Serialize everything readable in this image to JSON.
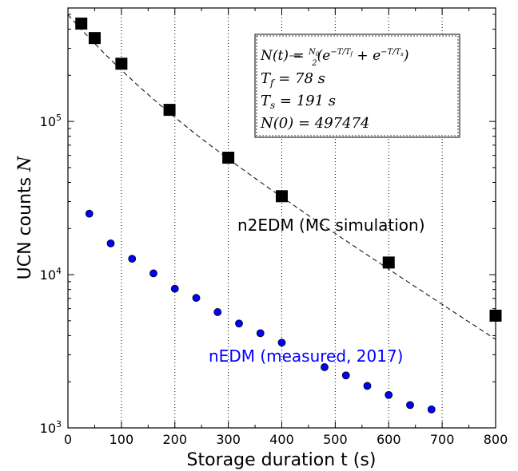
{
  "chart_data": {
    "type": "scatter",
    "xlabel": "Storage duration t (s)",
    "ylabel": "UCN counts",
    "ylabel_symbol": "N",
    "xlim": [
      0,
      800
    ],
    "ylim": [
      1000,
      550000
    ],
    "yscale": "log",
    "x_grid": "dotted vertical lines at major x ticks",
    "x_ticks": [
      0,
      100,
      200,
      300,
      400,
      500,
      600,
      700,
      800
    ],
    "x_tick_labels": [
      "0",
      "100",
      "200",
      "300",
      "400",
      "500",
      "600",
      "700",
      "800"
    ],
    "y_ticks": [
      1000,
      10000,
      100000
    ],
    "y_tick_labels": [
      {
        "base": "10",
        "exp": "3"
      },
      {
        "base": "10",
        "exp": "4"
      },
      {
        "base": "10",
        "exp": "5"
      }
    ],
    "series": [
      {
        "name": "n2EDM (MC simulation)",
        "color": "#000000",
        "marker": "square",
        "x": [
          25,
          50,
          100,
          190,
          300,
          400,
          600,
          800
        ],
        "y": [
          435000,
          350000,
          238000,
          119000,
          58000,
          32500,
          12000,
          5400
        ]
      },
      {
        "name": "nEDM (measured, 2017)",
        "color": "#0000ff",
        "marker": "circle",
        "x": [
          40,
          80,
          120,
          160,
          200,
          240,
          280,
          320,
          360,
          400,
          480,
          520,
          560,
          600,
          640,
          680
        ],
        "y": [
          25000,
          16000,
          12700,
          10200,
          8100,
          7050,
          5700,
          4800,
          4150,
          3600,
          2490,
          2200,
          1880,
          1640,
          1410,
          1320
        ]
      }
    ],
    "fit": {
      "type": "double exponential",
      "style": "dashed",
      "color": "#000000",
      "N0": 497474,
      "Tf": 78,
      "Ts": 191,
      "x_range": [
        0,
        800
      ]
    },
    "annotations": {
      "sim_label": "n2EDM (MC simulation)",
      "sim_color": "#000000",
      "meas_label": "nEDM (measured, 2017)",
      "meas_color": "#0000ff"
    },
    "formula_box": {
      "line1": "N(t) = N0/2 (e^(−T/Tf) + e^(−T/Ts))",
      "line2": "Tf = 78 s",
      "line3": "Ts = 191 s",
      "line4": "N(0) = 497474"
    }
  }
}
